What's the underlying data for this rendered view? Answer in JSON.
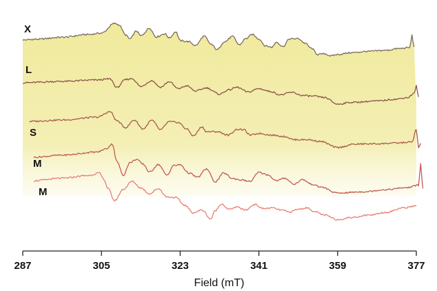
{
  "chart_data": {
    "type": "line",
    "xlabel": "Field (mT)",
    "ylabel": "",
    "title": "",
    "xlim": [
      287,
      377
    ],
    "x_ticks": [
      "287",
      "305",
      "323",
      "341",
      "359",
      "377"
    ],
    "x_tick_values": [
      287,
      305,
      323,
      341,
      359,
      377
    ],
    "grid": false,
    "fill_color": "#f1eb9e",
    "series": [
      {
        "name": "X",
        "color": "#7a6b5f",
        "x": [
          287,
          290,
          296,
          302,
          305,
          308,
          309,
          310.5,
          311.5,
          313,
          314,
          316,
          317.5,
          319.5,
          320.5,
          322,
          323,
          325,
          326.5,
          328.5,
          330,
          331.5,
          333,
          335,
          336.5,
          338,
          339.5,
          341,
          342.5,
          344,
          345,
          346.5,
          348,
          350,
          351.5,
          353,
          354.5,
          356,
          357.5,
          359,
          362,
          366,
          370,
          373,
          375.5,
          376,
          376.5
        ],
        "y": [
          0,
          0.2,
          0.8,
          1.6,
          2.0,
          4.8,
          4.4,
          1.5,
          0.3,
          2.6,
          1.2,
          3.4,
          0.9,
          1.8,
          0.6,
          2.4,
          -0.2,
          -0.5,
          -1.6,
          1.1,
          -1.2,
          -2.8,
          -0.6,
          1.0,
          -1.4,
          0.4,
          1.6,
          0.3,
          -1.7,
          -2.1,
          -0.6,
          -1.9,
          0.3,
          0.4,
          -0.9,
          -2.4,
          -4.2,
          -4.0,
          -4.6,
          -4.2,
          -3.7,
          -3.3,
          -3.0,
          -2.5,
          -2.2,
          1.4,
          -2.2
        ]
      },
      {
        "name": "L",
        "color": "#8a5346",
        "x": [
          287,
          296,
          304,
          307,
          308.5,
          310.5,
          312,
          314,
          316.5,
          318.5,
          320.5,
          322.5,
          324.5,
          326.5,
          329,
          332,
          334,
          336,
          338.5,
          341,
          343.5,
          346,
          348.5,
          351,
          353.5,
          356,
          359,
          362,
          368,
          372,
          375,
          376.5,
          377,
          377.5
        ],
        "y": [
          -8.5,
          -8.1,
          -7.7,
          -7.4,
          -9.9,
          -7.6,
          -7.3,
          -9.6,
          -7.9,
          -9.8,
          -8.2,
          -10.2,
          -9.4,
          -10.9,
          -10.0,
          -11.8,
          -10.6,
          -9.8,
          -11.2,
          -10.2,
          -11.0,
          -12.0,
          -11.3,
          -12.2,
          -12.4,
          -12.8,
          -14.7,
          -14.2,
          -13.8,
          -13.3,
          -12.8,
          -11.6,
          -9.4,
          -12.8
        ]
      },
      {
        "name": "S",
        "color": "#a85a4c",
        "x": [
          288.5,
          296,
          304,
          307,
          308.5,
          310.5,
          312.5,
          314.5,
          316.5,
          318.5,
          320.5,
          322.5,
          324.5,
          326,
          328,
          329,
          331.5,
          334,
          336,
          337.5,
          339,
          341,
          344,
          347,
          349,
          352,
          355,
          359,
          363,
          368,
          372,
          376,
          377,
          377.5,
          378
        ],
        "y": [
          -16.0,
          -15.6,
          -14.8,
          -13.2,
          -15.8,
          -17.8,
          -15.6,
          -18.2,
          -15.7,
          -18.4,
          -16.1,
          -16.3,
          -18.2,
          -20.2,
          -17.6,
          -19.0,
          -19.0,
          -20.0,
          -18.3,
          -18.4,
          -20.0,
          -19.5,
          -20.0,
          -20.4,
          -21.3,
          -21.3,
          -21.8,
          -23.6,
          -22.6,
          -22.5,
          -22.3,
          -22.0,
          -18.4,
          -23.8,
          -22.5
        ]
      },
      {
        "name": "M",
        "color": "#c05b52",
        "x": [
          289.5,
          296,
          304,
          306,
          307.5,
          308.5,
          310,
          311.5,
          313,
          314.5,
          316,
          318,
          320,
          321.5,
          323,
          325,
          327,
          329,
          331,
          333,
          335,
          337,
          339,
          341,
          343,
          345,
          347,
          349,
          351,
          353,
          355,
          359,
          365,
          370,
          375,
          377.5,
          378,
          378.5
        ],
        "y": [
          -22.2,
          -21.6,
          -20.7,
          -19.8,
          -18.4,
          -23.4,
          -27.4,
          -23.8,
          -22.8,
          -24.2,
          -26.5,
          -24.3,
          -27.4,
          -24.6,
          -24.4,
          -26.8,
          -28.0,
          -25.6,
          -29.3,
          -26.8,
          -28.4,
          -28.8,
          -29.2,
          -26.6,
          -27.3,
          -29.0,
          -28.3,
          -30.0,
          -28.7,
          -30.0,
          -30.8,
          -32.6,
          -32.2,
          -31.6,
          -31.0,
          -30.3,
          -24.0,
          -31.4
        ]
      },
      {
        "name": "M",
        "color": "#e77e73",
        "x": [
          289.5,
          296,
          302,
          304.5,
          305.5,
          306.5,
          308,
          310,
          312,
          314,
          316,
          318,
          320,
          322,
          324,
          326,
          328,
          330,
          331,
          332.5,
          334,
          336,
          338,
          340,
          342,
          344,
          346,
          348,
          350,
          352,
          354,
          356,
          359,
          362,
          366,
          370,
          374,
          377
        ],
        "y": [
          -28.5,
          -27.8,
          -27.0,
          -26.3,
          -28.0,
          -30.8,
          -34.3,
          -31.0,
          -28.7,
          -30.6,
          -32.3,
          -30.8,
          -33.2,
          -33.4,
          -35.6,
          -37.8,
          -37.0,
          -39.6,
          -37.2,
          -35.2,
          -36.8,
          -36.2,
          -37.0,
          -35.4,
          -36.6,
          -36.4,
          -37.0,
          -37.6,
          -36.8,
          -36.4,
          -37.6,
          -38.5,
          -39.8,
          -39.2,
          -38.5,
          -37.7,
          -36.4,
          -35.8
        ]
      }
    ]
  }
}
